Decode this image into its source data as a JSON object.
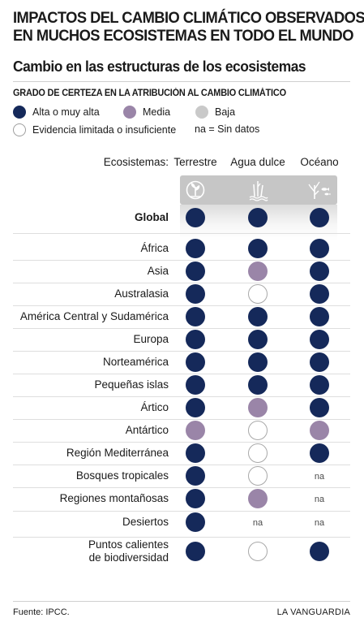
{
  "title_lines": [
    "IMPACTOS DEL CAMBIO CLIMÁTICO OBSERVADOS",
    "EN MUCHOS ECOSISTEMAS EN TODO EL MUNDO"
  ],
  "subtitle": "Cambio en las estructuras de los ecosistemas",
  "legend": {
    "heading": "GRADO DE CERTEZA EN LA ATRIBUCIÓN AL CAMBIO CLIMÁTICO",
    "high": "Alta o muy alta",
    "medium": "Media",
    "low": "Baja",
    "limited": "Evidencia limitada o insuficiente",
    "na_note": "na = Sin datos"
  },
  "colors": {
    "high": "#15295a",
    "medium": "#9a85a8",
    "low": "#c9c9c9",
    "limited": "#ffffff",
    "icon_band": "#c6c6c6"
  },
  "columns": {
    "label": "Ecosistemas:",
    "items": [
      {
        "name": "Terrestre",
        "icon": "plant-circle-icon"
      },
      {
        "name": "Agua dulce",
        "icon": "reeds-icon"
      },
      {
        "name": "Océano",
        "icon": "coral-fish-icon"
      }
    ]
  },
  "na_text": "na",
  "rows": [
    {
      "label": "Global",
      "bold": true,
      "values": [
        "high",
        "high",
        "high"
      ]
    },
    {
      "label": "África",
      "values": [
        "high",
        "high",
        "high"
      ]
    },
    {
      "label": "Asia",
      "values": [
        "high",
        "medium",
        "high"
      ]
    },
    {
      "label": "Australasia",
      "values": [
        "high",
        "limited",
        "high"
      ]
    },
    {
      "label": "América Central y Sudamérica",
      "values": [
        "high",
        "high",
        "high"
      ]
    },
    {
      "label": "Europa",
      "values": [
        "high",
        "high",
        "high"
      ]
    },
    {
      "label": "Norteamérica",
      "values": [
        "high",
        "high",
        "high"
      ]
    },
    {
      "label": "Pequeñas islas",
      "values": [
        "high",
        "high",
        "high"
      ]
    },
    {
      "label": "Ártico",
      "values": [
        "high",
        "medium",
        "high"
      ]
    },
    {
      "label": "Antártico",
      "values": [
        "medium",
        "limited",
        "medium"
      ]
    },
    {
      "label": "Región Mediterránea",
      "values": [
        "high",
        "limited",
        "high"
      ]
    },
    {
      "label": "Bosques tropicales",
      "values": [
        "high",
        "limited",
        "na"
      ]
    },
    {
      "label": "Regiones montañosas",
      "values": [
        "high",
        "medium",
        "na"
      ]
    },
    {
      "label": "Desiertos",
      "values": [
        "high",
        "na",
        "na"
      ]
    },
    {
      "label": "Puntos calientes de biodiversidad",
      "label_lines": [
        "Puntos calientes",
        "de biodiversidad"
      ],
      "values": [
        "high",
        "limited",
        "high"
      ]
    }
  ],
  "footer": {
    "source": "Fuente: IPCC.",
    "brand": "LA VANGUARDIA"
  }
}
